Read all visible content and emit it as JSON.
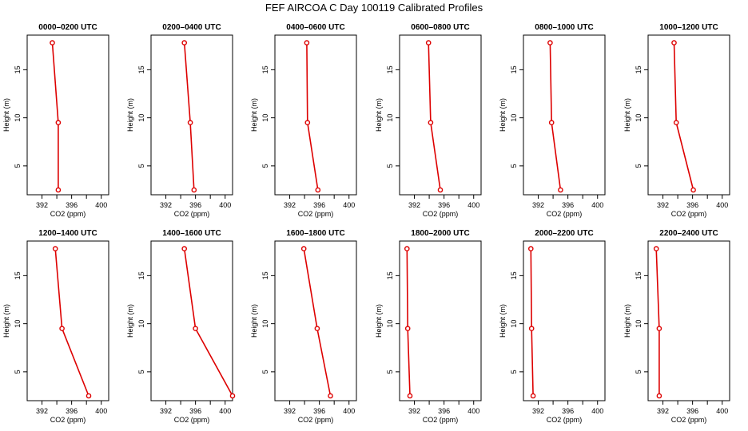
{
  "title": "FEF AIRCOA C  Day 100119  Calibrated Profiles",
  "chart_data": {
    "type": "line",
    "title": "FEF AIRCOA C  Day 100119  Calibrated Profiles",
    "xlabel": "CO2 (ppm)",
    "ylabel": "Height (m)",
    "xlim": [
      390,
      401
    ],
    "ylim": [
      2,
      18.6
    ],
    "xticks": [
      392,
      396,
      400
    ],
    "xticks_minor": [
      394,
      398
    ],
    "yticks": [
      5,
      10,
      15
    ],
    "grid": false,
    "panels": [
      {
        "name": "0000–0200 UTC",
        "heights": [
          17.8,
          9.5,
          2.5
        ],
        "values": [
          393.4,
          394.2,
          394.2
        ]
      },
      {
        "name": "0200–0400 UTC",
        "heights": [
          17.8,
          9.5,
          2.5
        ],
        "values": [
          394.5,
          395.3,
          395.8
        ]
      },
      {
        "name": "0400–0600 UTC",
        "heights": [
          17.8,
          9.5,
          2.5
        ],
        "values": [
          394.3,
          394.4,
          395.8
        ]
      },
      {
        "name": "0600–0800 UTC",
        "heights": [
          17.8,
          9.5,
          2.5
        ],
        "values": [
          393.9,
          394.2,
          395.5
        ]
      },
      {
        "name": "0800–1000 UTC",
        "heights": [
          17.8,
          9.5,
          2.5
        ],
        "values": [
          393.6,
          393.8,
          395.0
        ]
      },
      {
        "name": "1000–1200 UTC",
        "heights": [
          17.8,
          9.5,
          2.5
        ],
        "values": [
          393.5,
          393.8,
          396.1
        ]
      },
      {
        "name": "1200–1400 UTC",
        "heights": [
          17.8,
          9.5,
          2.5
        ],
        "values": [
          393.8,
          394.7,
          398.3
        ]
      },
      {
        "name": "1400–1600 UTC",
        "heights": [
          17.8,
          9.5,
          2.5
        ],
        "values": [
          394.5,
          396.0,
          401.0
        ]
      },
      {
        "name": "1600–1800 UTC",
        "heights": [
          17.8,
          9.5,
          2.5
        ],
        "values": [
          393.9,
          395.7,
          397.5
        ]
      },
      {
        "name": "1800–2000 UTC",
        "heights": [
          17.8,
          9.5,
          2.5
        ],
        "values": [
          391.0,
          391.1,
          391.4
        ]
      },
      {
        "name": "2000–2200 UTC",
        "heights": [
          17.8,
          9.5,
          2.5
        ],
        "values": [
          391.0,
          391.1,
          391.3
        ]
      },
      {
        "name": "2200–2400 UTC",
        "heights": [
          17.8,
          9.5,
          2.5
        ],
        "values": [
          391.1,
          391.5,
          391.5
        ]
      }
    ]
  }
}
